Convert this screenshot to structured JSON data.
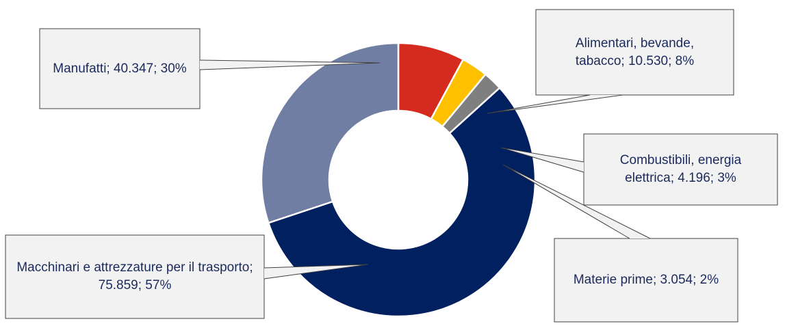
{
  "chart_data": {
    "type": "pie",
    "style": "donut",
    "categories": [
      "Macchinari e attrezzature per il trasporto",
      "Manufatti",
      "Alimentari, bevande, tabacco",
      "Combustibili, energia elettrica",
      "Materie prime"
    ],
    "values": [
      75859,
      40347,
      10530,
      4196,
      3054
    ],
    "percents": [
      57,
      30,
      8,
      3,
      2
    ],
    "colors": [
      "#002060",
      "#6f7ea2",
      "#d52b1e",
      "#ffc000",
      "#7f7f7f"
    ],
    "labels": [
      "Macchinari e attrezzature per il trasporto; 75.859; 57%",
      "Manufatti; 40.347; 30%",
      "Alimentari, bevande, tabacco; 10.530; 8%",
      "Combustibili, energia elettrica; 4.196; 3%",
      "Materie prime; 3.054; 2%"
    ],
    "label_style": "callouts",
    "legend": "none"
  }
}
